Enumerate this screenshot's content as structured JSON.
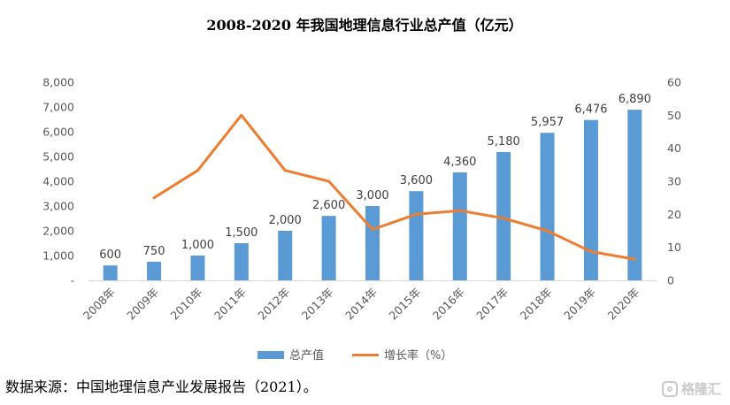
{
  "chart_data": {
    "type": "bar",
    "title": "2008-2020 年我国地理信息行业总产值（亿元）",
    "categories": [
      "2008年",
      "2009年",
      "2010年",
      "2011年",
      "2012年",
      "2013年",
      "2014年",
      "2015年",
      "2016年",
      "2017年",
      "2018年",
      "2019年",
      "2020年"
    ],
    "series": [
      {
        "name": "总产值",
        "type": "bar",
        "axis": "left",
        "color": "#5B9BD5",
        "values": [
          600,
          750,
          1000,
          1500,
          2000,
          2600,
          3000,
          3600,
          4360,
          5180,
          5957,
          6476,
          6890
        ],
        "labels": [
          "600",
          "750",
          "1,000",
          "1,500",
          "2,000",
          "2,600",
          "3,000",
          "3,600",
          "4,360",
          "5,180",
          "5,957",
          "6,476",
          "6,890"
        ]
      },
      {
        "name": "增长率（%）",
        "type": "line",
        "axis": "right",
        "color": "#ED7D31",
        "values": [
          null,
          25,
          33.3,
          50,
          33.3,
          30,
          15.4,
          20,
          21.1,
          18.8,
          15,
          8.7,
          6.4
        ]
      }
    ],
    "y_left": {
      "min": 0,
      "max": 8000,
      "ticks": [
        0,
        1000,
        2000,
        3000,
        4000,
        5000,
        6000,
        7000,
        8000
      ],
      "tick_labels": [
        "-",
        "1,000",
        "2,000",
        "3,000",
        "4,000",
        "5,000",
        "6,000",
        "7,000",
        "8,000"
      ]
    },
    "y_right": {
      "min": 0,
      "max": 60,
      "ticks": [
        0,
        10,
        20,
        30,
        40,
        50,
        60
      ],
      "tick_labels": [
        "0",
        "10",
        "20",
        "30",
        "40",
        "50",
        "60"
      ]
    },
    "grid": false,
    "legend": "bottom-center"
  },
  "source_note": "数据来源：中国地理信息产业发展报告（2021）。",
  "watermark": {
    "icon": "gelonghui-logo-icon",
    "text": "格隆汇"
  }
}
